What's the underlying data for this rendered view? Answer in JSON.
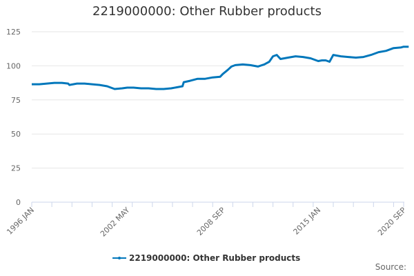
{
  "title": "2219000000: Other Rubber products",
  "legend": {
    "label": "2219000000: Other Rubber products",
    "color": "#0077bb"
  },
  "source_label": "Source:",
  "colors": {
    "series": "#0077bb",
    "grid": "#e6e6e6",
    "axis": "#ccd6eb",
    "text": "#333333",
    "tick_text": "#666666"
  },
  "y_axis": {
    "ticks": [
      "0",
      "25",
      "50",
      "75",
      "100",
      "125"
    ]
  },
  "x_axis": {
    "labels": [
      "1996 JAN",
      "2002 MAY",
      "2008 SEP",
      "2015 JAN",
      "2020 SEP"
    ]
  },
  "chart_data": {
    "type": "line",
    "title": "2219000000: Other Rubber products",
    "xlabel": "",
    "ylabel": "",
    "ylim": [
      0,
      125
    ],
    "grid": true,
    "legend_position": "bottom",
    "x_tick_labels": [
      "1996 JAN",
      "2002 MAY",
      "2008 SEP",
      "2015 JAN",
      "2020 SEP"
    ],
    "series": [
      {
        "name": "2219000000: Other Rubber products",
        "x": [
          "1996-01",
          "1996-07",
          "1997-01",
          "1997-07",
          "1998-01",
          "1998-06",
          "1998-07",
          "1999-01",
          "1999-07",
          "2000-01",
          "2000-07",
          "2001-01",
          "2001-04",
          "2001-07",
          "2002-01",
          "2002-05",
          "2002-10",
          "2003-04",
          "2003-10",
          "2004-04",
          "2004-10",
          "2005-04",
          "2005-10",
          "2006-01",
          "2006-02",
          "2006-07",
          "2007-01",
          "2007-07",
          "2008-01",
          "2008-07",
          "2008-09",
          "2009-01",
          "2009-04",
          "2009-07",
          "2010-01",
          "2010-07",
          "2011-01",
          "2011-06",
          "2011-10",
          "2012-01",
          "2012-04",
          "2012-07",
          "2013-01",
          "2013-07",
          "2014-01",
          "2014-07",
          "2015-01",
          "2015-04",
          "2015-07",
          "2015-10",
          "2016-01",
          "2016-07",
          "2017-01",
          "2017-07",
          "2018-01",
          "2018-07",
          "2019-01",
          "2019-07",
          "2020-01",
          "2020-07",
          "2020-09",
          "2021-01"
        ],
        "values": [
          86.5,
          86.5,
          87,
          87.5,
          87.5,
          87,
          86,
          87,
          87,
          86.5,
          86,
          85,
          84,
          83,
          83.5,
          84,
          84,
          83.5,
          83.5,
          83,
          83,
          83.5,
          84.5,
          85,
          88,
          89,
          90.5,
          90.5,
          91.5,
          92,
          94,
          97,
          99.5,
          100.5,
          101,
          100.5,
          99.5,
          101,
          103,
          107,
          108,
          105,
          106,
          107,
          106.5,
          105.5,
          103.5,
          104,
          104,
          103,
          108,
          107,
          106.5,
          106,
          106.5,
          108,
          110,
          111,
          113,
          113.5,
          114,
          114
        ]
      }
    ]
  }
}
